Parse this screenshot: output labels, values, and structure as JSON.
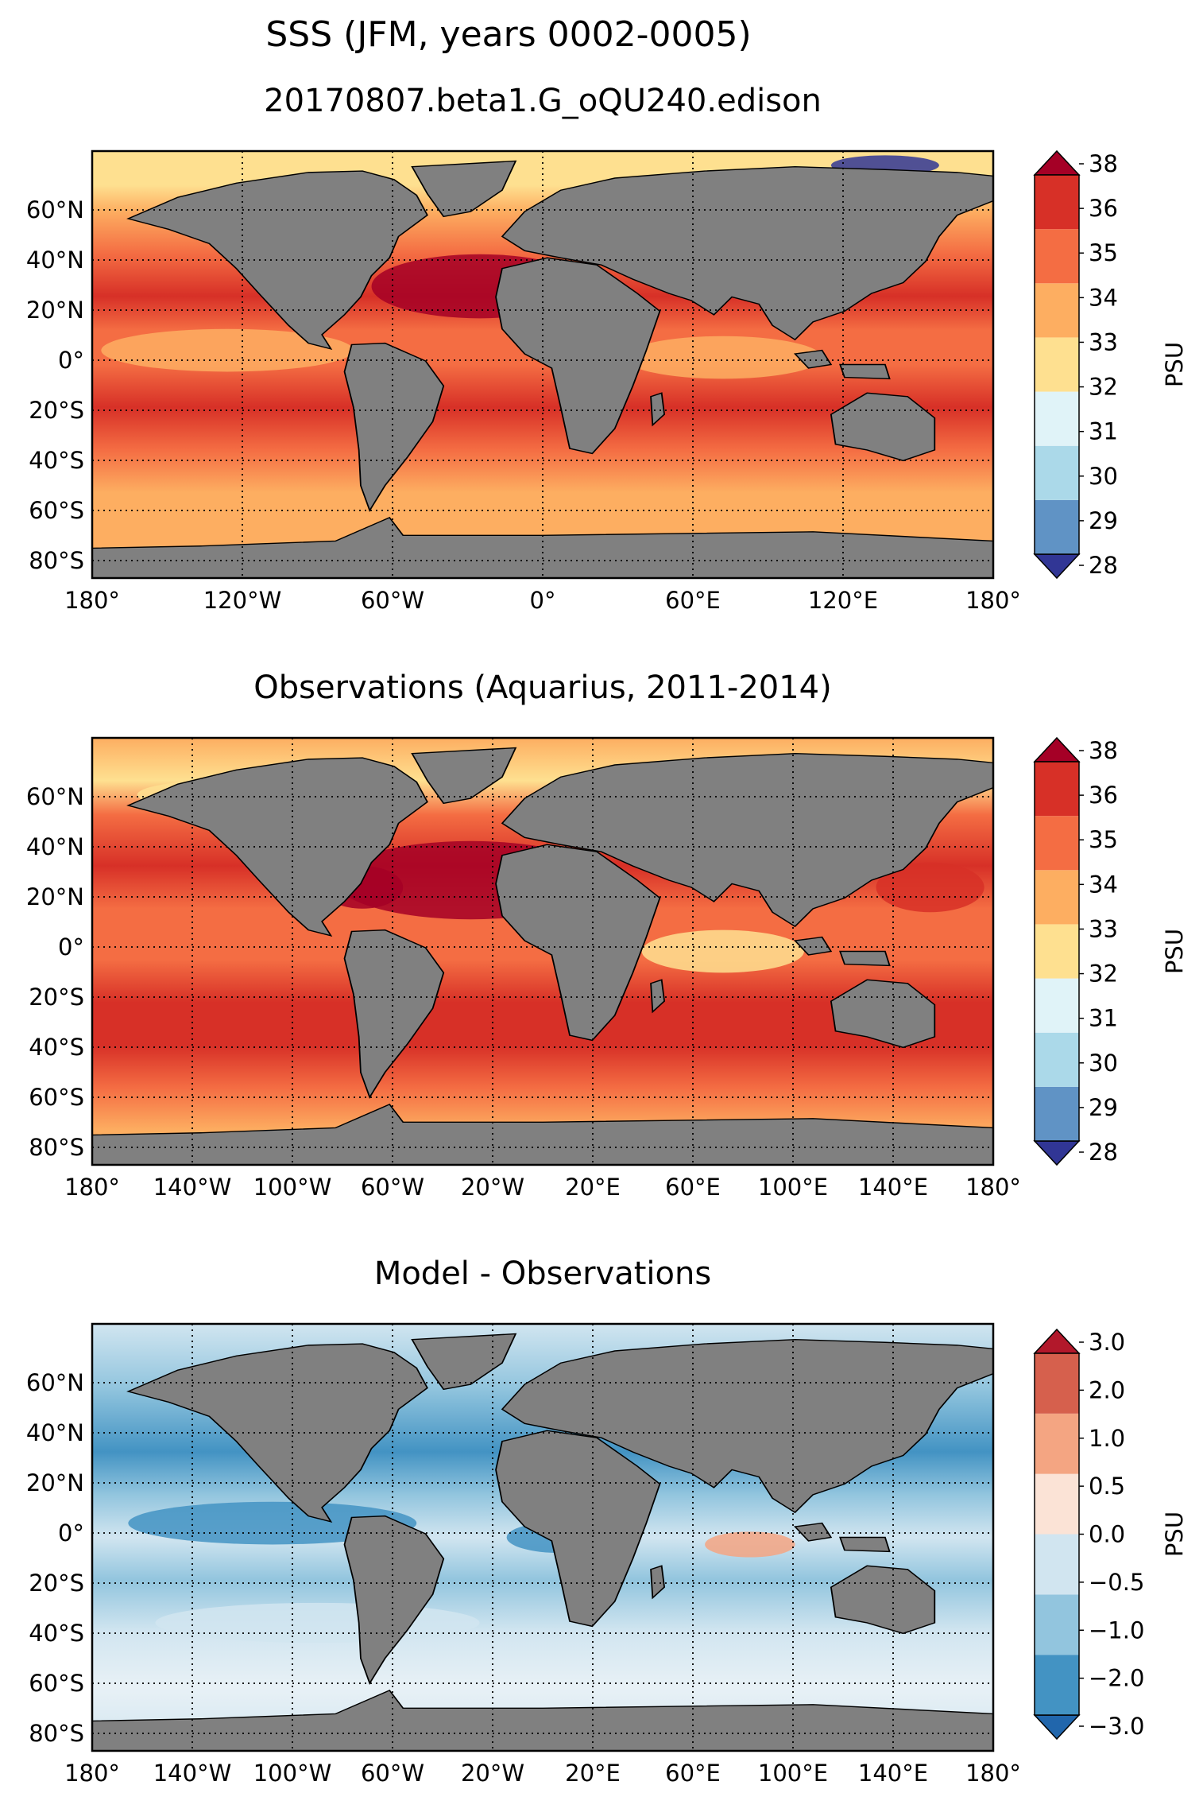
{
  "figure": {
    "suptitle": "SSS (JFM, years 0002-0005)"
  },
  "latitude_labels": [
    "60°N",
    "40°N",
    "20°N",
    "0°",
    "20°S",
    "40°S",
    "60°S",
    "80°S"
  ],
  "panels": [
    {
      "id": "model",
      "title": "20170807.beta1.G_oQU240.edison",
      "longitude_labels": [
        "180°",
        "120°W",
        "60°W",
        "0°",
        "60°E",
        "120°E",
        "180°"
      ],
      "colorbar": {
        "label": "PSU",
        "ticks": [
          "38",
          "36",
          "35",
          "34",
          "33",
          "32",
          "31",
          "30",
          "29",
          "28"
        ],
        "colors": [
          "#313695",
          "#6093c5",
          "#abd9e9",
          "#e0f3f8",
          "#fee090",
          "#fdae61",
          "#f46d43",
          "#d73027",
          "#a50026"
        ],
        "extend": "both"
      }
    },
    {
      "id": "obs",
      "title": "Observations (Aquarius, 2011-2014)",
      "longitude_labels": [
        "180°",
        "140°W",
        "100°W",
        "60°W",
        "20°W",
        "20°E",
        "60°E",
        "100°E",
        "140°E",
        "180°"
      ],
      "colorbar": {
        "label": "PSU",
        "ticks": [
          "38",
          "36",
          "35",
          "34",
          "33",
          "32",
          "31",
          "30",
          "29",
          "28"
        ],
        "colors": [
          "#313695",
          "#6093c5",
          "#abd9e9",
          "#e0f3f8",
          "#fee090",
          "#fdae61",
          "#f46d43",
          "#d73027",
          "#a50026"
        ],
        "extend": "both"
      }
    },
    {
      "id": "bias",
      "title": "Model - Observations",
      "longitude_labels": [
        "180°",
        "140°W",
        "100°W",
        "60°W",
        "20°W",
        "20°E",
        "60°E",
        "100°E",
        "140°E",
        "180°"
      ],
      "colorbar": {
        "label": "PSU",
        "ticks": [
          "3.0",
          "2.0",
          "1.0",
          "0.5",
          "0.0",
          "−0.5",
          "−1.0",
          "−2.0",
          "−3.0"
        ],
        "colors": [
          "#2166ac",
          "#4393c3",
          "#92c5de",
          "#d1e5f0",
          "#fbe3d6",
          "#f4a582",
          "#d6604d",
          "#b2182b"
        ],
        "extend": "both"
      }
    }
  ]
}
